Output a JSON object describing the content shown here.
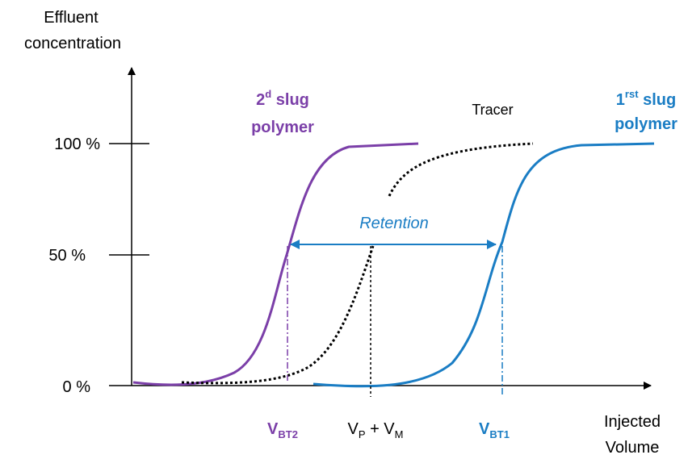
{
  "axes": {
    "y_title": [
      "Effluent",
      "concentration"
    ],
    "x_title": [
      "Injected",
      "Volume"
    ],
    "y_ticks": [
      "100 %",
      "50 %",
      "0 %"
    ]
  },
  "curves": [
    {
      "label": {
        "base": "2",
        "sup": "d",
        "rest": " slug",
        "line2": "polymer"
      }
    },
    {
      "label": "Tracer"
    },
    {
      "label": {
        "base": "1",
        "sup": "rst",
        "rest": " slug",
        "line2": "polymer"
      }
    }
  ],
  "retention": "Retention",
  "markers": [
    {
      "base": "V",
      "sub": "BT2"
    },
    {
      "base": "V",
      "sub": "P",
      "mid": " + V",
      "sub2": "M"
    },
    {
      "base": "V",
      "sub": "BT1"
    }
  ]
}
